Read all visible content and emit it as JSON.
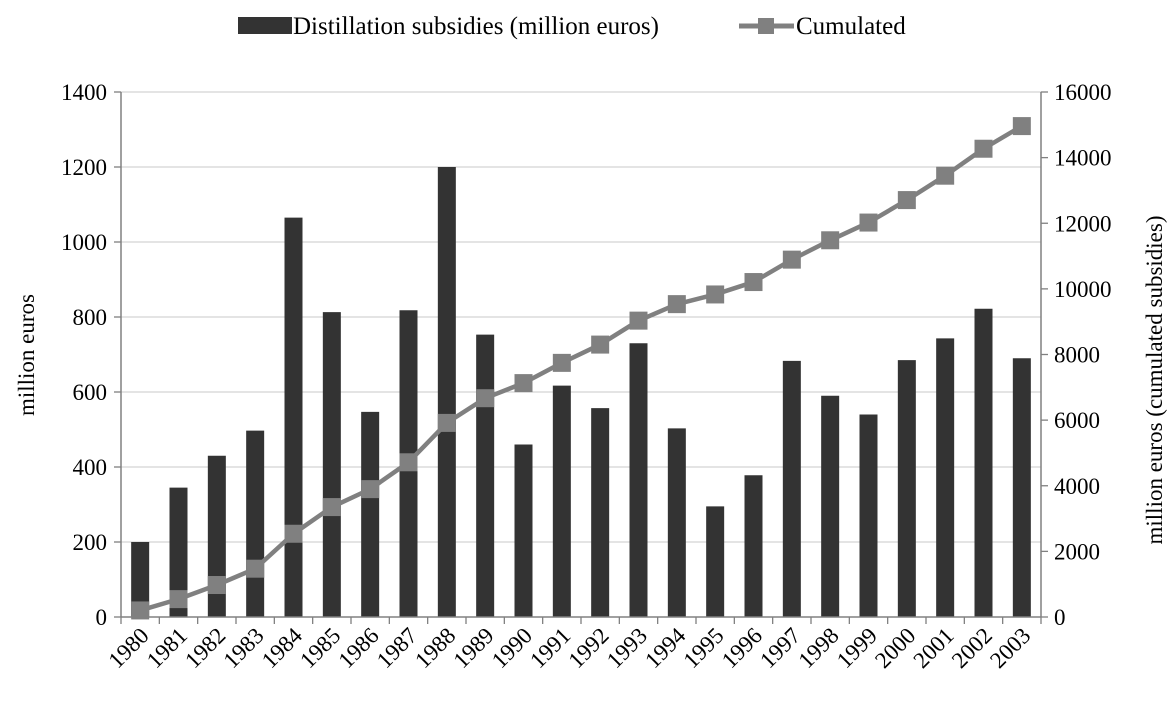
{
  "chart_data": {
    "type": "bar+line",
    "categories": [
      "1980",
      "1981",
      "1982",
      "1983",
      "1984",
      "1985",
      "1986",
      "1987",
      "1988",
      "1989",
      "1990",
      "1991",
      "1992",
      "1993",
      "1994",
      "1995",
      "1996",
      "1997",
      "1998",
      "1999",
      "2000",
      "2001",
      "2002",
      "2003"
    ],
    "series": [
      {
        "name": "Distillation subsidies (million euros)",
        "type": "bar",
        "axis": "left",
        "color": "#333333",
        "values": [
          200,
          345,
          430,
          497,
          1065,
          813,
          547,
          818,
          1200,
          753,
          460,
          617,
          557,
          730,
          503,
          295,
          378,
          683,
          590,
          540,
          685,
          743,
          822,
          690
        ]
      },
      {
        "name": "Cumulated",
        "type": "line",
        "axis": "right",
        "color": "#808080",
        "values": [
          200,
          545,
          975,
          1472,
          2537,
          3350,
          3897,
          4715,
          5915,
          6668,
          7128,
          7745,
          8302,
          9032,
          9535,
          9830,
          10208,
          10891,
          11481,
          12021,
          12706,
          13449,
          14271,
          14961
        ]
      }
    ],
    "y_left": {
      "label": "million euros",
      "range": [
        0,
        1400
      ],
      "ticks": [
        "0",
        "200",
        "400",
        "600",
        "800",
        "1000",
        "1200",
        "1400"
      ]
    },
    "y_right": {
      "label": "million euros (cumulated subsidies)",
      "range": [
        0,
        16000
      ],
      "ticks": [
        "0",
        "2000",
        "4000",
        "6000",
        "8000",
        "10000",
        "12000",
        "14000",
        "16000"
      ]
    },
    "grid": true,
    "legend": "top-center"
  }
}
